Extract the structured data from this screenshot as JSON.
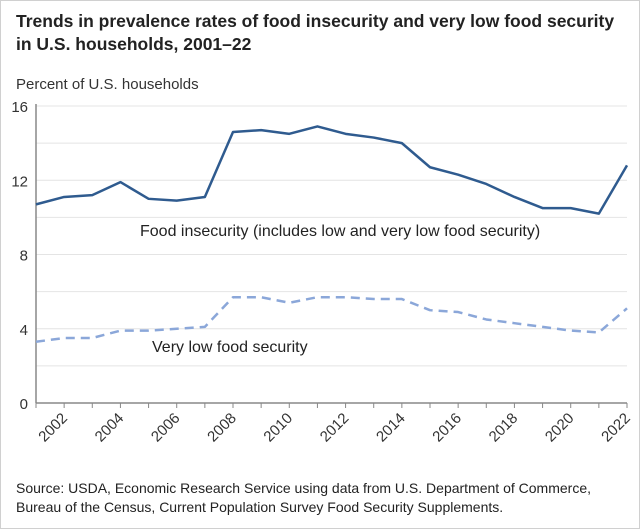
{
  "chart_data": {
    "type": "line",
    "title": "Trends in prevalence rates of food insecurity and very low food security in U.S. households, 2001–22",
    "ylabel": "Percent of U.S. households",
    "xlabel": "",
    "ylim": [
      0,
      16
    ],
    "xlim": [
      2001,
      2022
    ],
    "yticks": [
      "0",
      "4",
      "8",
      "12",
      "16"
    ],
    "xticks": [
      "2002",
      "2004",
      "2006",
      "2008",
      "2010",
      "2012",
      "2014",
      "2016",
      "2018",
      "2020",
      "2022"
    ],
    "grid": true,
    "x": [
      2001,
      2002,
      2003,
      2004,
      2005,
      2006,
      2007,
      2008,
      2009,
      2010,
      2011,
      2012,
      2013,
      2014,
      2015,
      2016,
      2017,
      2018,
      2019,
      2020,
      2021,
      2022
    ],
    "series": [
      {
        "name": "Food insecurity (includes low and very low food security)",
        "color": "#2f5b8f",
        "style": "solid",
        "values": [
          10.7,
          11.1,
          11.2,
          11.9,
          11.0,
          10.9,
          11.1,
          14.6,
          14.7,
          14.5,
          14.9,
          14.5,
          14.3,
          14.0,
          12.7,
          12.3,
          11.8,
          11.1,
          10.5,
          10.5,
          10.2,
          12.8
        ]
      },
      {
        "name": "Very low food security",
        "color": "#8ba7d9",
        "style": "dashed",
        "values": [
          3.3,
          3.5,
          3.5,
          3.9,
          3.9,
          4.0,
          4.1,
          5.7,
          5.7,
          5.4,
          5.7,
          5.7,
          5.6,
          5.6,
          5.0,
          4.9,
          4.5,
          4.3,
          4.1,
          3.9,
          3.8,
          5.1
        ]
      }
    ],
    "source": "Source: USDA, Economic Research Service using data from U.S. Department of Commerce, Bureau of the Census, Current Population Survey Food Security Supplements."
  }
}
